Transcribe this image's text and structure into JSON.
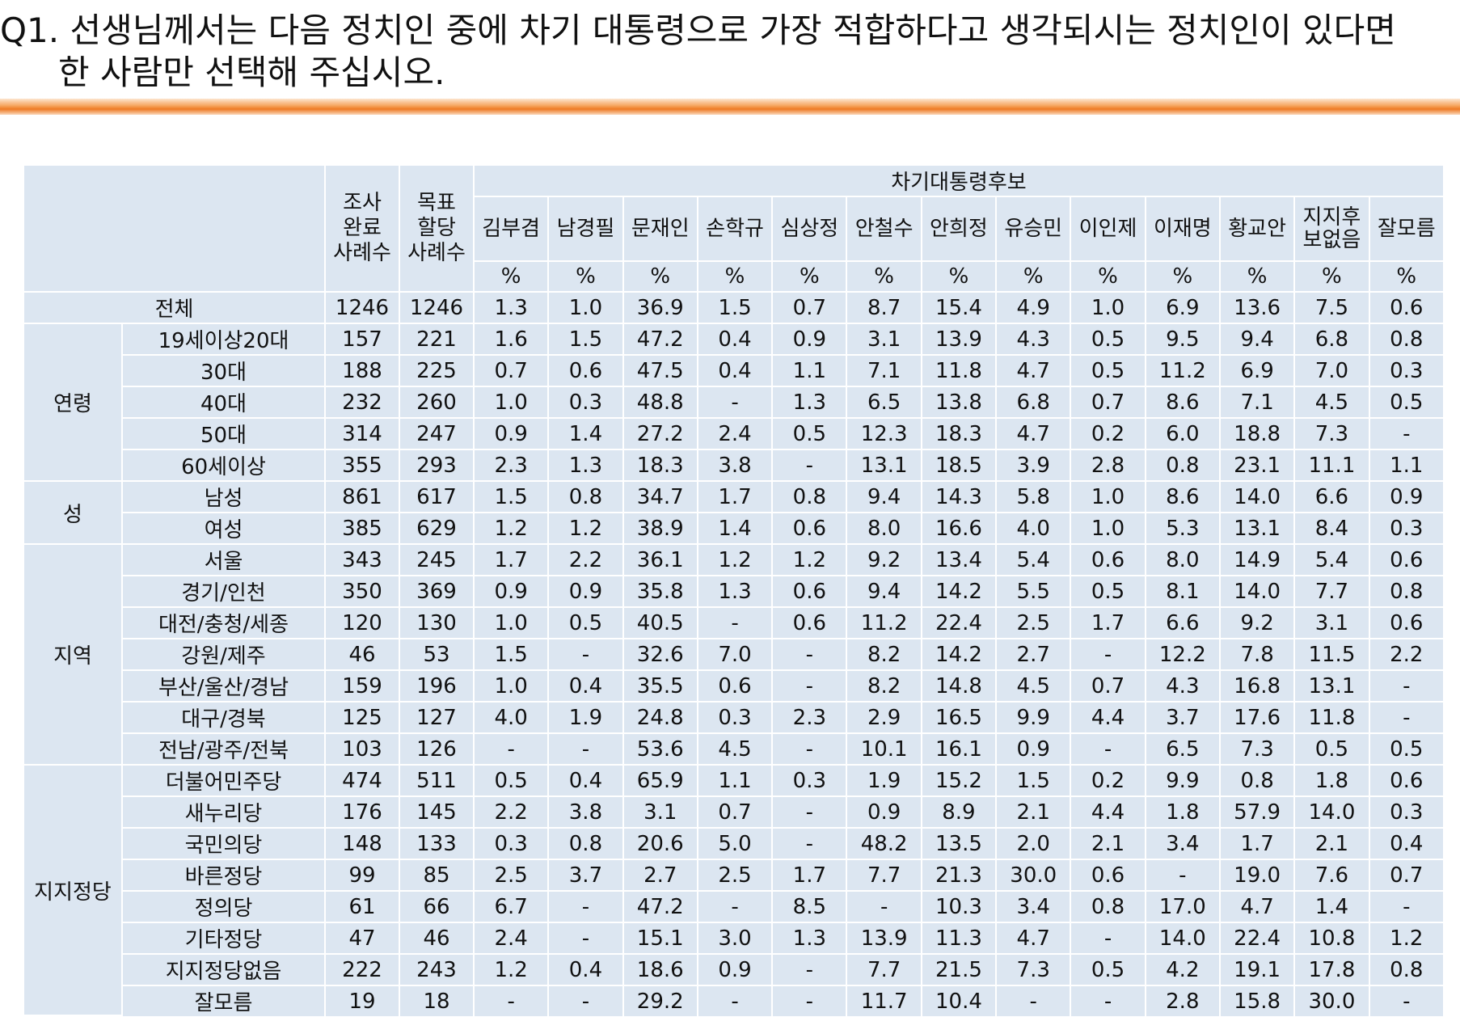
{
  "question": {
    "line1": "Q1. 선생님께서는 다음 정치인 중에 차기 대통령으로 가장 적합하다고 생각되시는 정치인이 있다면",
    "line2": "한 사람만 선택해 주십시오."
  },
  "table": {
    "group_header": "차기대통령후보",
    "count_headers": [
      {
        "line1": "조사",
        "line2": "완료",
        "line3": "사례수"
      },
      {
        "line1": "목표",
        "line2": "할당",
        "line3": "사례수"
      }
    ],
    "candidates": [
      {
        "line1": "김부겸",
        "line2": ""
      },
      {
        "line1": "남경필",
        "line2": ""
      },
      {
        "line1": "문재인",
        "line2": ""
      },
      {
        "line1": "손학규",
        "line2": ""
      },
      {
        "line1": "심상정",
        "line2": ""
      },
      {
        "line1": "안철수",
        "line2": ""
      },
      {
        "line1": "안희정",
        "line2": ""
      },
      {
        "line1": "유승민",
        "line2": ""
      },
      {
        "line1": "이인제",
        "line2": ""
      },
      {
        "line1": "이재명",
        "line2": ""
      },
      {
        "line1": "황교안",
        "line2": ""
      },
      {
        "line1": "지지후",
        "line2": "보없음"
      },
      {
        "line1": "잘모름",
        "line2": ""
      }
    ],
    "unit": "%",
    "rows": [
      {
        "category": "",
        "label": "전체",
        "values": [
          "1246",
          "1246",
          "1.3",
          "1.0",
          "36.9",
          "1.5",
          "0.7",
          "8.7",
          "15.4",
          "4.9",
          "1.0",
          "6.9",
          "13.6",
          "7.5",
          "0.6"
        ]
      },
      {
        "category": "연령",
        "label": "19세이상20대",
        "values": [
          "157",
          "221",
          "1.6",
          "1.5",
          "47.2",
          "0.4",
          "0.9",
          "3.1",
          "13.9",
          "4.3",
          "0.5",
          "9.5",
          "9.4",
          "6.8",
          "0.8"
        ]
      },
      {
        "category": "연령",
        "label": "30대",
        "values": [
          "188",
          "225",
          "0.7",
          "0.6",
          "47.5",
          "0.4",
          "1.1",
          "7.1",
          "11.8",
          "4.7",
          "0.5",
          "11.2",
          "6.9",
          "7.0",
          "0.3"
        ]
      },
      {
        "category": "연령",
        "label": "40대",
        "values": [
          "232",
          "260",
          "1.0",
          "0.3",
          "48.8",
          "-",
          "1.3",
          "6.5",
          "13.8",
          "6.8",
          "0.7",
          "8.6",
          "7.1",
          "4.5",
          "0.5"
        ]
      },
      {
        "category": "연령",
        "label": "50대",
        "values": [
          "314",
          "247",
          "0.9",
          "1.4",
          "27.2",
          "2.4",
          "0.5",
          "12.3",
          "18.3",
          "4.7",
          "0.2",
          "6.0",
          "18.8",
          "7.3",
          "-"
        ]
      },
      {
        "category": "연령",
        "label": "60세이상",
        "values": [
          "355",
          "293",
          "2.3",
          "1.3",
          "18.3",
          "3.8",
          "-",
          "13.1",
          "18.5",
          "3.9",
          "2.8",
          "0.8",
          "23.1",
          "11.1",
          "1.1"
        ]
      },
      {
        "category": "성",
        "label": "남성",
        "values": [
          "861",
          "617",
          "1.5",
          "0.8",
          "34.7",
          "1.7",
          "0.8",
          "9.4",
          "14.3",
          "5.8",
          "1.0",
          "8.6",
          "14.0",
          "6.6",
          "0.9"
        ]
      },
      {
        "category": "성",
        "label": "여성",
        "values": [
          "385",
          "629",
          "1.2",
          "1.2",
          "38.9",
          "1.4",
          "0.6",
          "8.0",
          "16.6",
          "4.0",
          "1.0",
          "5.3",
          "13.1",
          "8.4",
          "0.3"
        ]
      },
      {
        "category": "지역",
        "label": "서울",
        "values": [
          "343",
          "245",
          "1.7",
          "2.2",
          "36.1",
          "1.2",
          "1.2",
          "9.2",
          "13.4",
          "5.4",
          "0.6",
          "8.0",
          "14.9",
          "5.4",
          "0.6"
        ]
      },
      {
        "category": "지역",
        "label": "경기/인천",
        "values": [
          "350",
          "369",
          "0.9",
          "0.9",
          "35.8",
          "1.3",
          "0.6",
          "9.4",
          "14.2",
          "5.5",
          "0.5",
          "8.1",
          "14.0",
          "7.7",
          "0.8"
        ]
      },
      {
        "category": "지역",
        "label": "대전/충청/세종",
        "values": [
          "120",
          "130",
          "1.0",
          "0.5",
          "40.5",
          "-",
          "0.6",
          "11.2",
          "22.4",
          "2.5",
          "1.7",
          "6.6",
          "9.2",
          "3.1",
          "0.6"
        ]
      },
      {
        "category": "지역",
        "label": "강원/제주",
        "values": [
          "46",
          "53",
          "1.5",
          "-",
          "32.6",
          "7.0",
          "-",
          "8.2",
          "14.2",
          "2.7",
          "-",
          "12.2",
          "7.8",
          "11.5",
          "2.2"
        ]
      },
      {
        "category": "지역",
        "label": "부산/울산/경남",
        "values": [
          "159",
          "196",
          "1.0",
          "0.4",
          "35.5",
          "0.6",
          "-",
          "8.2",
          "14.8",
          "4.5",
          "0.7",
          "4.3",
          "16.8",
          "13.1",
          "-"
        ]
      },
      {
        "category": "지역",
        "label": "대구/경북",
        "values": [
          "125",
          "127",
          "4.0",
          "1.9",
          "24.8",
          "0.3",
          "2.3",
          "2.9",
          "16.5",
          "9.9",
          "4.4",
          "3.7",
          "17.6",
          "11.8",
          "-"
        ]
      },
      {
        "category": "지역",
        "label": "전남/광주/전북",
        "values": [
          "103",
          "126",
          "-",
          "-",
          "53.6",
          "4.5",
          "-",
          "10.1",
          "16.1",
          "0.9",
          "-",
          "6.5",
          "7.3",
          "0.5",
          "0.5"
        ]
      },
      {
        "category": "지지정당",
        "label": "더불어민주당",
        "values": [
          "474",
          "511",
          "0.5",
          "0.4",
          "65.9",
          "1.1",
          "0.3",
          "1.9",
          "15.2",
          "1.5",
          "0.2",
          "9.9",
          "0.8",
          "1.8",
          "0.6"
        ]
      },
      {
        "category": "지지정당",
        "label": "새누리당",
        "values": [
          "176",
          "145",
          "2.2",
          "3.8",
          "3.1",
          "0.7",
          "-",
          "0.9",
          "8.9",
          "2.1",
          "4.4",
          "1.8",
          "57.9",
          "14.0",
          "0.3"
        ]
      },
      {
        "category": "지지정당",
        "label": "국민의당",
        "values": [
          "148",
          "133",
          "0.3",
          "0.8",
          "20.6",
          "5.0",
          "-",
          "48.2",
          "13.5",
          "2.0",
          "2.1",
          "3.4",
          "1.7",
          "2.1",
          "0.4"
        ]
      },
      {
        "category": "지지정당",
        "label": "바른정당",
        "values": [
          "99",
          "85",
          "2.5",
          "3.7",
          "2.7",
          "2.5",
          "1.7",
          "7.7",
          "21.3",
          "30.0",
          "0.6",
          "-",
          "19.0",
          "7.6",
          "0.7"
        ]
      },
      {
        "category": "지지정당",
        "label": "정의당",
        "values": [
          "61",
          "66",
          "6.7",
          "-",
          "47.2",
          "-",
          "8.5",
          "-",
          "10.3",
          "3.4",
          "0.8",
          "17.0",
          "4.7",
          "1.4",
          "-"
        ]
      },
      {
        "category": "지지정당",
        "label": "기타정당",
        "values": [
          "47",
          "46",
          "2.4",
          "-",
          "15.1",
          "3.0",
          "1.3",
          "13.9",
          "11.3",
          "4.7",
          "-",
          "14.0",
          "22.4",
          "10.8",
          "1.2"
        ]
      },
      {
        "category": "지지정당",
        "label": "지지정당없음",
        "values": [
          "222",
          "243",
          "1.2",
          "0.4",
          "18.6",
          "0.9",
          "-",
          "7.7",
          "21.5",
          "7.3",
          "0.5",
          "4.2",
          "19.1",
          "17.8",
          "0.8"
        ]
      },
      {
        "category": "지지정당",
        "label": "잘모름",
        "values": [
          "19",
          "18",
          "-",
          "-",
          "29.2",
          "-",
          "-",
          "11.7",
          "10.4",
          "-",
          "-",
          "2.8",
          "15.8",
          "30.0",
          "-"
        ]
      }
    ]
  }
}
